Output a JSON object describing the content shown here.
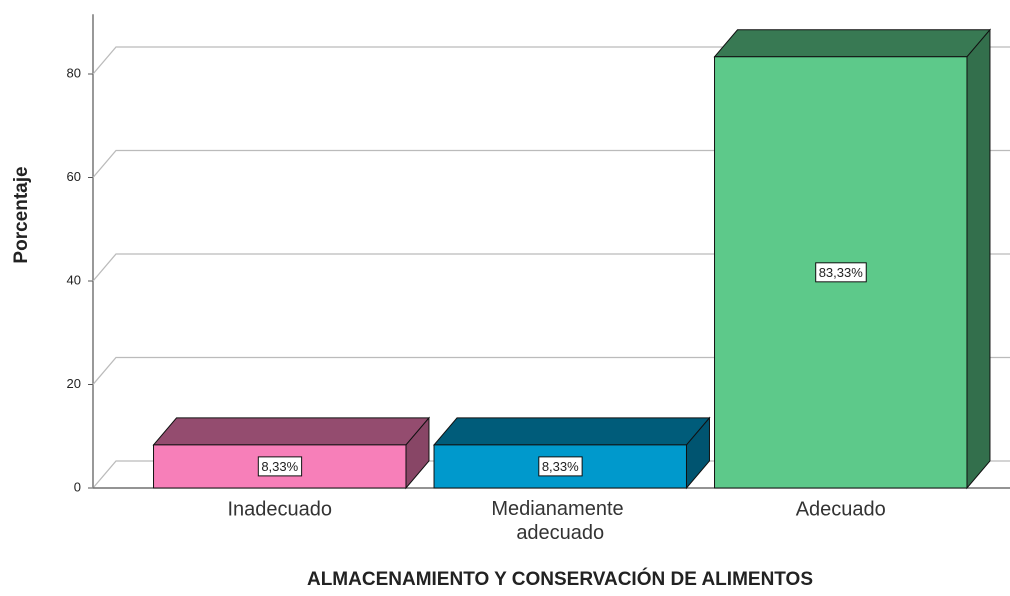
{
  "chart_data": {
    "type": "bar3d",
    "ylabel": "Porcentaje",
    "xlabel": "ALMACENAMIENTO Y CONSERVACIÓN DE ALIMENTOS",
    "categories": [
      "Inadecuado",
      "Medianamente adecuado",
      "Adecuado"
    ],
    "values": [
      8.33,
      8.33,
      83.33
    ],
    "value_labels": [
      "8,33%",
      "8,33%",
      "83,33%"
    ],
    "colors": [
      "#f77fb9",
      "#0099cc",
      "#5dc98a"
    ],
    "ylim": [
      0,
      90
    ],
    "yticks": [
      0,
      20,
      40,
      60,
      80
    ],
    "grid": true
  }
}
